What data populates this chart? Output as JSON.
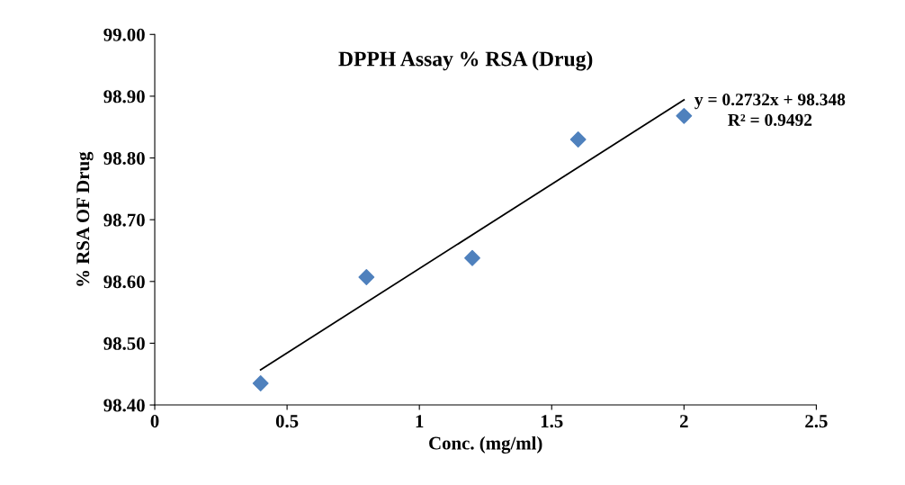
{
  "chart_data": {
    "type": "scatter",
    "title": "DPPH Assay % RSA (Drug)",
    "xlabel": "Conc. (mg/ml)",
    "ylabel": "% RSA OF Drug",
    "series": [
      {
        "color": "#4f81bd",
        "marker": "diamond",
        "x": [
          0.4,
          0.8,
          1.2,
          1.6,
          2.0
        ],
        "values": [
          98.435,
          98.607,
          98.638,
          98.83,
          98.868
        ]
      },
      {
        "type": "line",
        "color": "#000000",
        "marker": "none",
        "line_style": "solid",
        "x": [
          0.4,
          2.0
        ],
        "values": [
          98.457,
          98.894
        ]
      }
    ],
    "xlim": [
      0,
      2.5
    ],
    "xticks": [
      0,
      0.5,
      1,
      1.5,
      2,
      2.5
    ],
    "ylim": [
      98.4,
      99.0
    ],
    "yticks": [
      {
        "value": 98.4,
        "label": "98.40"
      },
      {
        "value": 98.5,
        "label": "98.50"
      },
      {
        "value": 98.6,
        "label": "98.60"
      },
      {
        "value": 98.7,
        "label": "98.70"
      },
      {
        "value": 98.8,
        "label": "98.80"
      },
      {
        "value": 98.9,
        "label": "98.90"
      },
      {
        "value": 99.0,
        "label": "99.00"
      }
    ],
    "grid": false,
    "legend": false,
    "annotations": [
      "y = 0.2732x + 98.348",
      "R² = 0.9492"
    ]
  }
}
